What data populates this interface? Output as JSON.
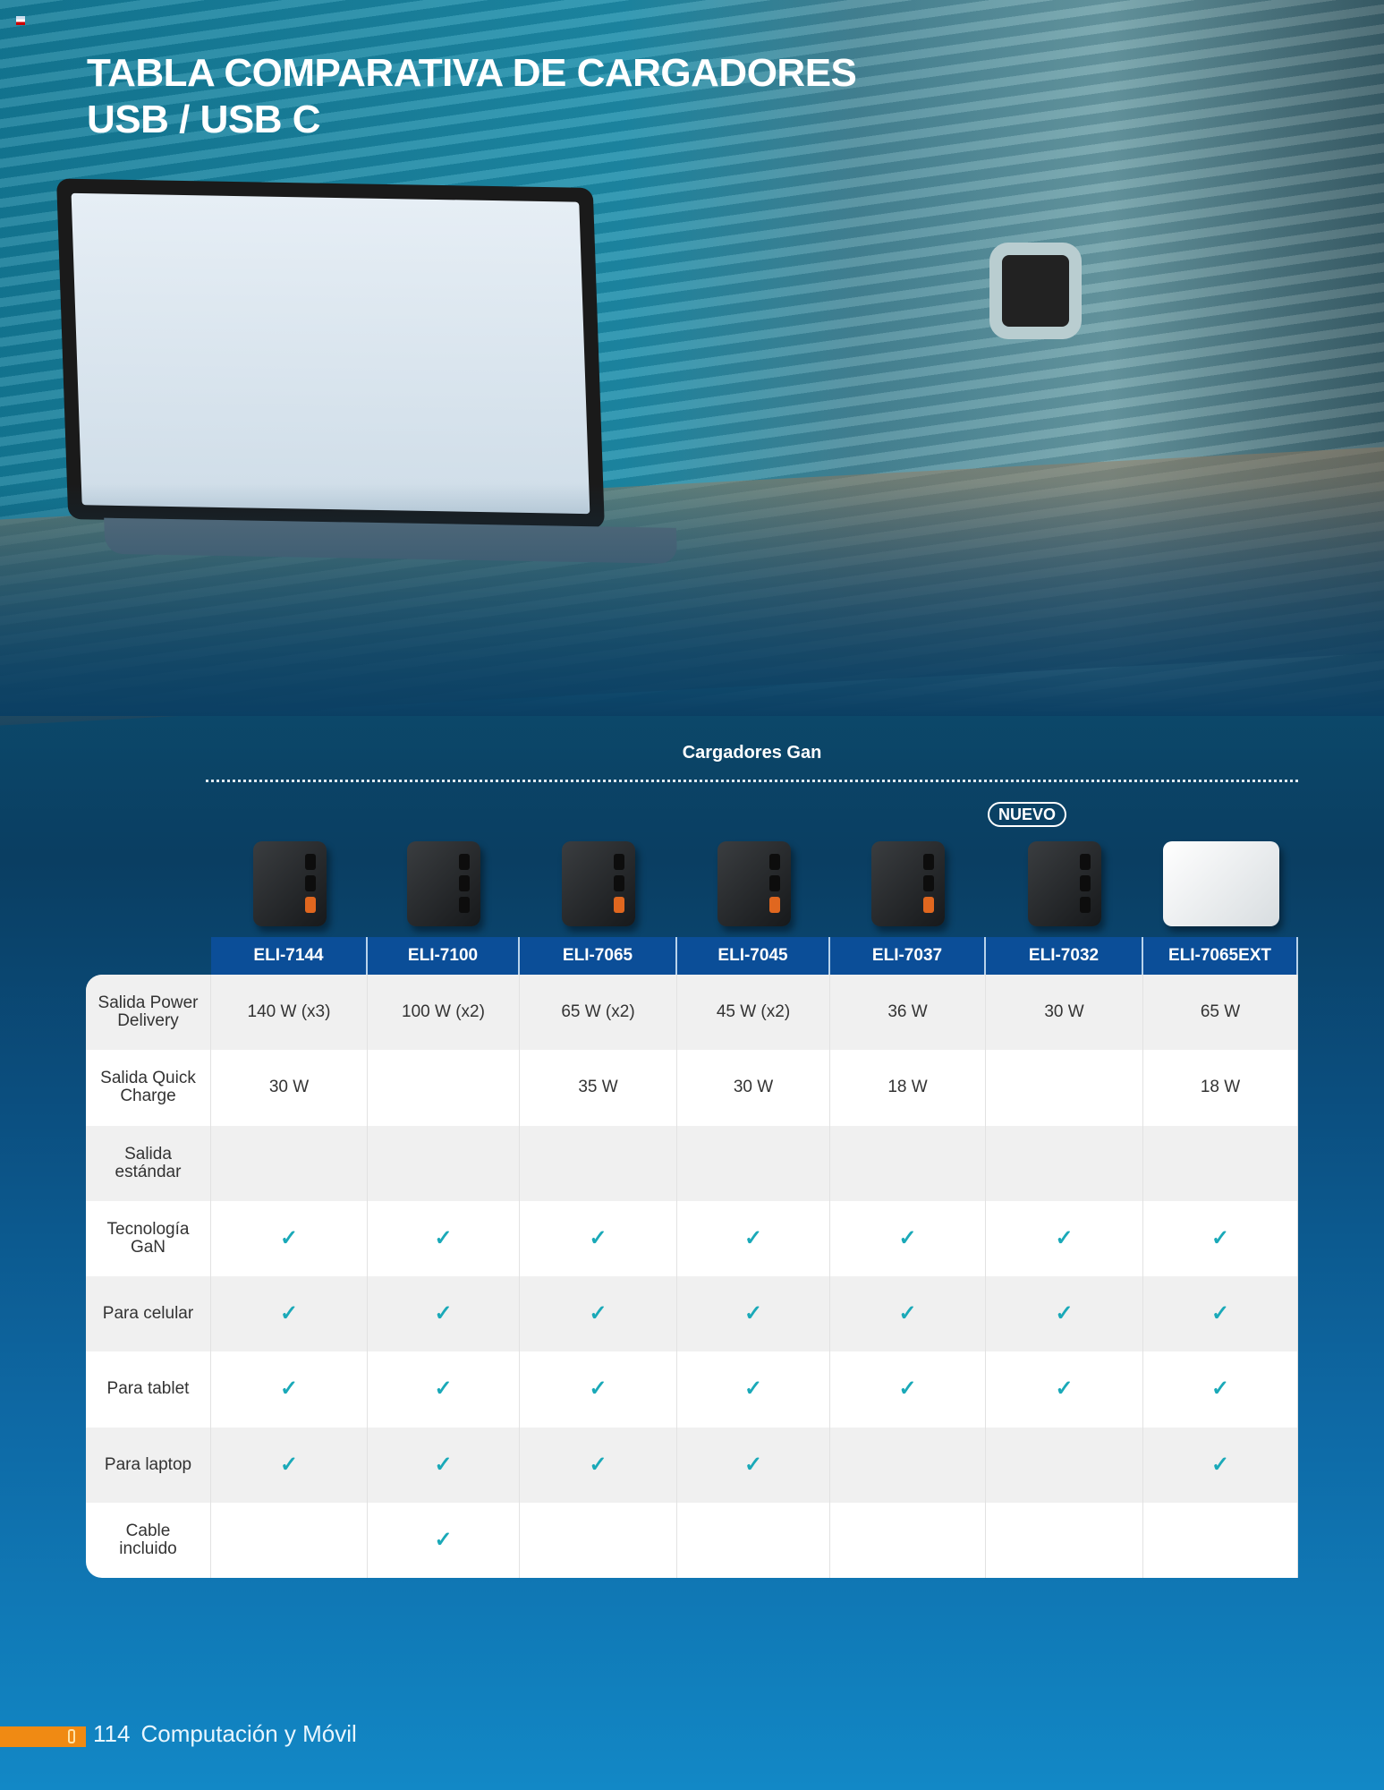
{
  "title": {
    "line1": "TABLA COMPARATIVA DE CARGADORES",
    "line2": "USB / USB C"
  },
  "section_title": "Cargadores Gan",
  "badge": "NUEVO",
  "colors": {
    "header_bg": "#0b4e98",
    "check": "#1aa9b8",
    "footer_accent": "#f08a13"
  },
  "columns": [
    "ELI-7144",
    "ELI-7100",
    "ELI-7065",
    "ELI-7045",
    "ELI-7037",
    "ELI-7032",
    "ELI-7065EXT"
  ],
  "rows": [
    {
      "label": "Salida Power Delivery",
      "values": [
        "140 W (x3)",
        "100 W (x2)",
        "65 W (x2)",
        "45 W (x2)",
        "36 W",
        "30 W",
        "65 W"
      ]
    },
    {
      "label": "Salida Quick Charge",
      "values": [
        "30 W",
        "",
        "35 W",
        "30 W",
        "18 W",
        "",
        "18 W"
      ]
    },
    {
      "label": "Salida estándar",
      "values": [
        "",
        "",
        "",
        "",
        "",
        "",
        ""
      ]
    },
    {
      "label": "Tecnología GaN",
      "values": [
        "✓",
        "✓",
        "✓",
        "✓",
        "✓",
        "✓",
        "✓"
      ]
    },
    {
      "label": "Para celular",
      "values": [
        "✓",
        "✓",
        "✓",
        "✓",
        "✓",
        "✓",
        "✓"
      ]
    },
    {
      "label": "Para tablet",
      "values": [
        "✓",
        "✓",
        "✓",
        "✓",
        "✓",
        "✓",
        "✓"
      ]
    },
    {
      "label": "Para laptop",
      "values": [
        "✓",
        "✓",
        "✓",
        "✓",
        "",
        "",
        "✓"
      ]
    },
    {
      "label": "Cable incluido",
      "values": [
        "",
        "✓",
        "",
        "",
        "",
        "",
        ""
      ]
    }
  ],
  "footer": {
    "page": "114",
    "section": "Computación y Móvil",
    "icon": "usb-drive-icon"
  }
}
